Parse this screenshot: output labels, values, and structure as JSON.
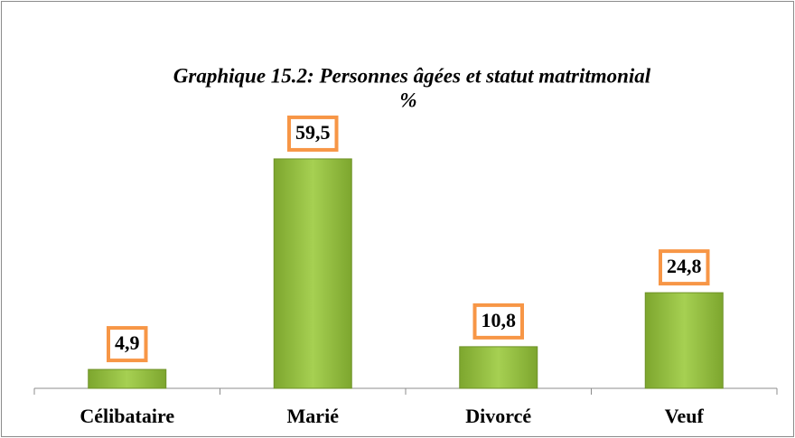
{
  "chart_data": {
    "type": "bar",
    "title": "Graphique 15.2: Personnes âgées et statut matritmonial",
    "subtitle": "%",
    "categories": [
      "Célibataire",
      "Marié",
      "Divorcé",
      "Veuf"
    ],
    "values": [
      4.9,
      59.5,
      10.8,
      24.8
    ],
    "value_labels": [
      "4,9",
      "59,5",
      "10,8",
      "24,8"
    ],
    "color": "#94c23e"
  }
}
